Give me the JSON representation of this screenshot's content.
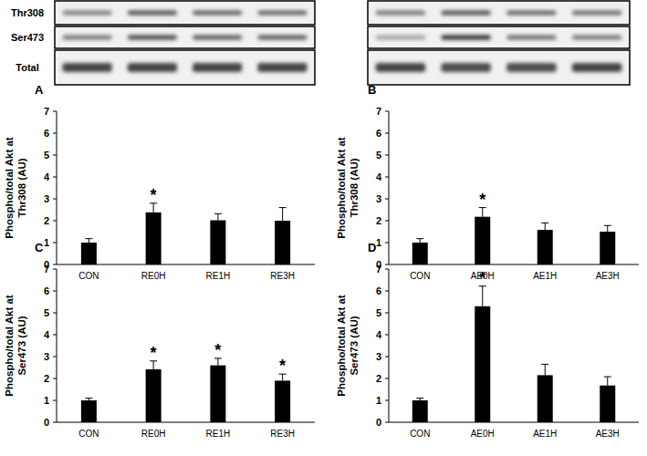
{
  "blot": {
    "rows": [
      "Thr308",
      "Ser473",
      "Total"
    ]
  },
  "chart_data": [
    {
      "type": "bar",
      "title": "A",
      "categories": [
        "CON",
        "RE0H",
        "RE1H",
        "RE3H"
      ],
      "values": [
        1.0,
        2.38,
        2.02,
        2.0
      ],
      "errors": [
        0.18,
        0.42,
        0.3,
        0.6
      ],
      "significance": [
        null,
        "*",
        null,
        null
      ],
      "ylabel": [
        "Phospho/total Akt at",
        "Thr308 (AU)"
      ],
      "color": "#000000",
      "ylim": [
        0,
        7
      ],
      "yticks": [
        0,
        1,
        2,
        3,
        4,
        5,
        6,
        7
      ],
      "grid": false
    },
    {
      "type": "bar",
      "title": "B",
      "categories": [
        "CON",
        "AE0H",
        "AE1H",
        "AE3H"
      ],
      "values": [
        1.0,
        2.18,
        1.58,
        1.5
      ],
      "errors": [
        0.18,
        0.42,
        0.32,
        0.28
      ],
      "significance": [
        null,
        "*",
        null,
        null
      ],
      "ylabel": [
        "Phospho/total Akt at",
        "Thr308 (AU)"
      ],
      "color": "#000000",
      "ylim": [
        0,
        7
      ],
      "yticks": [
        0,
        1,
        2,
        3,
        4,
        5,
        6,
        7
      ],
      "grid": false
    },
    {
      "type": "bar",
      "title": "C",
      "categories": [
        "CON",
        "RE0H",
        "RE1H",
        "RE3H"
      ],
      "values": [
        1.0,
        2.42,
        2.6,
        1.9
      ],
      "errors": [
        0.1,
        0.38,
        0.32,
        0.3
      ],
      "significance": [
        null,
        "*",
        "*",
        "*"
      ],
      "ylabel": [
        "Phospho/total Akt at",
        "Ser473 (AU)"
      ],
      "color": "#000000",
      "ylim": [
        0,
        7
      ],
      "yticks": [
        0,
        1,
        2,
        3,
        4,
        5,
        6,
        7
      ],
      "grid": false
    },
    {
      "type": "bar",
      "title": "D",
      "categories": [
        "CON",
        "AE0H",
        "AE1H",
        "AE3H"
      ],
      "values": [
        1.0,
        5.3,
        2.15,
        1.68
      ],
      "errors": [
        0.1,
        0.92,
        0.5,
        0.4
      ],
      "significance": [
        null,
        "*",
        null,
        null
      ],
      "ylabel": [
        "Phospho/total Akt at",
        "Ser473 (AU)"
      ],
      "color": "#000000",
      "ylim": [
        0,
        7
      ],
      "yticks": [
        0,
        1,
        2,
        3,
        4,
        5,
        6,
        7
      ],
      "grid": false
    }
  ]
}
